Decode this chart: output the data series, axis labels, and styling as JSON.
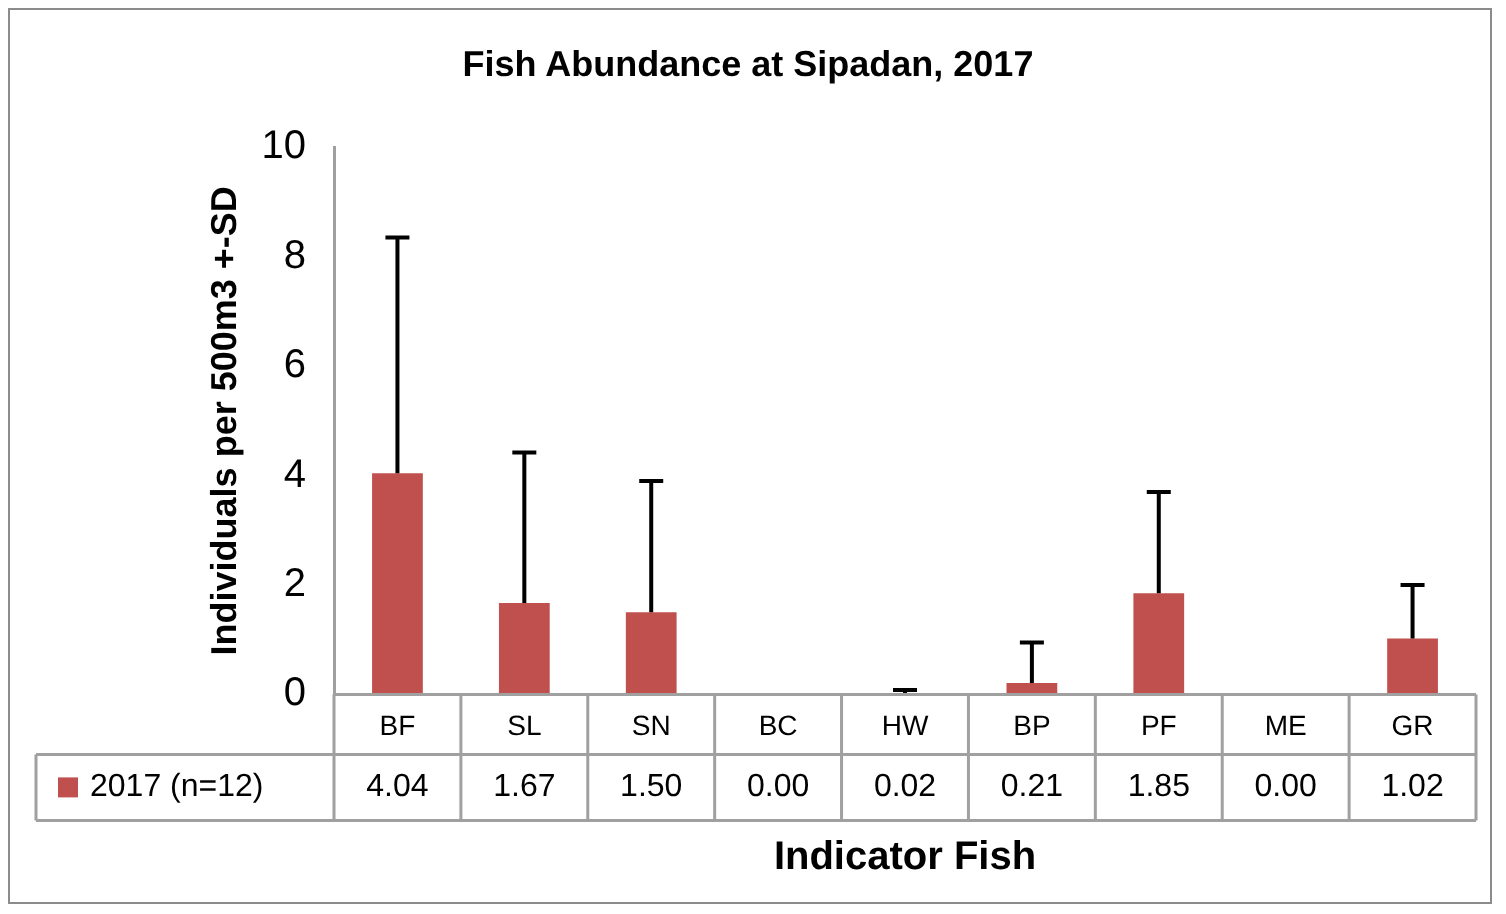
{
  "chart_data": {
    "type": "bar",
    "title": "Fish Abundance at Sipadan, 2017",
    "xlabel": "Indicator Fish",
    "ylabel": "Individuals per 500m3 +-SD",
    "categories": [
      "BF",
      "SL",
      "SN",
      "BC",
      "HW",
      "BP",
      "PF",
      "ME",
      "GR"
    ],
    "series": [
      {
        "name": "2017 (n=12)",
        "color": "#c0504d",
        "values": [
          4.04,
          1.67,
          1.5,
          0.0,
          0.02,
          0.21,
          1.85,
          0.0,
          1.02
        ],
        "value_labels": [
          "4.04",
          "1.67",
          "1.50",
          "0.00",
          "0.02",
          "0.21",
          "1.85",
          "0.00",
          "1.02"
        ],
        "errors": [
          [
            4.04,
            8.35
          ],
          [
            1.67,
            4.42
          ],
          [
            1.5,
            3.9
          ],
          null,
          [
            0.02,
            0.08
          ],
          [
            0.21,
            0.95
          ],
          [
            1.85,
            3.7
          ],
          null,
          [
            1.02,
            2.0
          ]
        ]
      }
    ],
    "ylim": [
      0,
      10
    ],
    "yticks": [
      0,
      2,
      4,
      6,
      8,
      10
    ],
    "grid": false,
    "legend": "bottom"
  }
}
